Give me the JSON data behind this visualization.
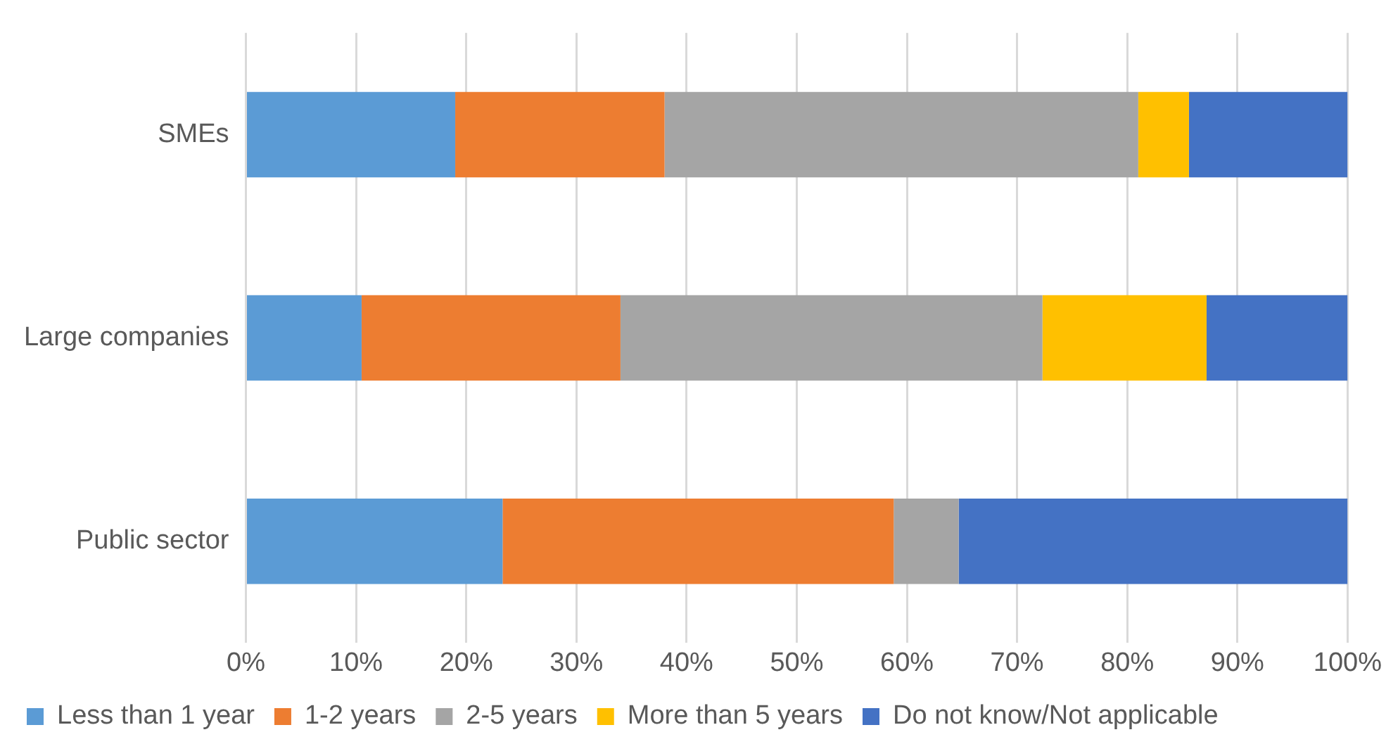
{
  "chart_data": {
    "type": "bar",
    "orientation": "horizontal",
    "stacked": true,
    "categories": [
      "SMEs",
      "Large companies",
      "Public sector"
    ],
    "series": [
      {
        "name": "Less than 1 year",
        "color": "#5b9bd5",
        "values": [
          19,
          10.5,
          23.3
        ]
      },
      {
        "name": "1-2 years",
        "color": "#ed7d31",
        "values": [
          19,
          23.5,
          35.5
        ]
      },
      {
        "name": "2-5 years",
        "color": "#a5a5a5",
        "values": [
          43,
          38.3,
          5.9
        ]
      },
      {
        "name": "More than 5 years",
        "color": "#ffc000",
        "values": [
          4.6,
          14.9,
          0
        ]
      },
      {
        "name": "Do not know/Not applicable",
        "color": "#4472c4",
        "values": [
          14.4,
          12.8,
          35.3
        ]
      }
    ],
    "xlim": [
      0,
      100
    ],
    "xticks": [
      {
        "value": 0,
        "label": "0%"
      },
      {
        "value": 10,
        "label": "10%"
      },
      {
        "value": 20,
        "label": "20%"
      },
      {
        "value": 30,
        "label": "30%"
      },
      {
        "value": 40,
        "label": "40%"
      },
      {
        "value": 50,
        "label": "50%"
      },
      {
        "value": 60,
        "label": "60%"
      },
      {
        "value": 70,
        "label": "70%"
      },
      {
        "value": 80,
        "label": "80%"
      },
      {
        "value": 90,
        "label": "90%"
      },
      {
        "value": 100,
        "label": "100%"
      }
    ],
    "grid": "x",
    "legend": "bottom"
  }
}
